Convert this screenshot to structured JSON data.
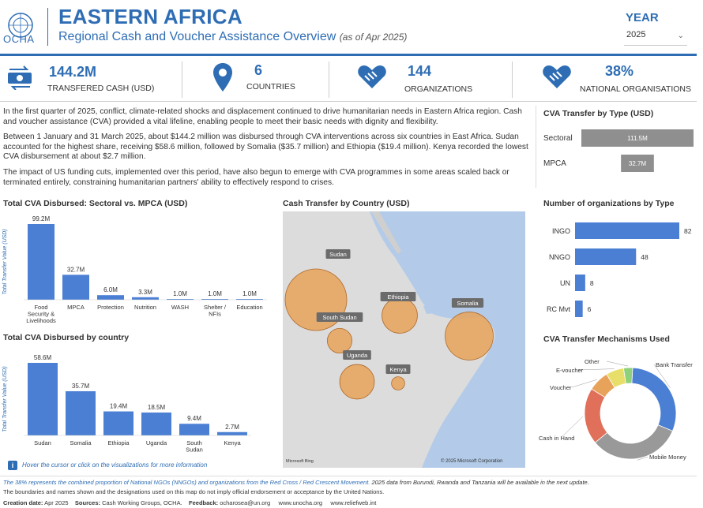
{
  "header": {
    "org": "OCHA",
    "title": "EASTERN AFRICA",
    "subtitle": "Regional Cash and Voucher Assistance Overview",
    "asof": "(as of Apr 2025)",
    "year_label": "YEAR",
    "year_value": "2025"
  },
  "kpis": [
    {
      "value": "144.2M",
      "label": "TRANSFERED CASH (USD)",
      "icon": "cash-transfer-icon"
    },
    {
      "value": "6",
      "label": "COUNTRIES",
      "icon": "map-pin-icon"
    },
    {
      "value": "144",
      "label": "ORGANIZATIONS",
      "icon": "handshake-icon"
    },
    {
      "value": "38%",
      "label": "NATIONAL ORGANISATIONS",
      "icon": "handshake-heart-icon"
    }
  ],
  "narrative": {
    "p1": "In the first quarter of 2025, conflict, climate-related shocks and displacement continued to drive humanitarian needs in Eastern Africa region. Cash and voucher assistance (CVA) provided a vital lifeline, enabling people to meet their basic needs with dignity and flexibility.",
    "p2": "Between 1 January and 31 March 2025, about $144.2 million was disbursed through CVA interventions across six countries in East Africa. Sudan accounted for the highest share, receiving $58.6 million, followed by Somalia ($35.7 million) and Ethiopia ($19.4 million). Kenya recorded the lowest CVA disbursement at about $2.7 million.",
    "p3": "The impact of US funding cuts, implemented over this period, have also begun to emerge with CVA programmes in some areas scaled back or terminated entirely, constraining humanitarian partners' ability to effectively respond to crises."
  },
  "hint": "Hover the cursor or click on the visualizations for more information",
  "map": {
    "title": "Cash Transfer by Country (USD)",
    "credit": "© 2025 Microsoft Corporation",
    "logo": "Microsoft Bing"
  },
  "chart_data": [
    {
      "type": "bar",
      "title": "CVA Transfer by Type (USD)",
      "orientation": "horizontal",
      "categories": [
        "Sectoral",
        "MPCA"
      ],
      "values": [
        111.5,
        32.7
      ],
      "labels": [
        "111.5M",
        "32.7M"
      ]
    },
    {
      "type": "bar",
      "title": "Total CVA Disbursed: Sectoral vs. MPCA (USD)",
      "ylabel": "Total Transfer Value (USD)",
      "categories": [
        "Food Security & Livelihoods",
        "MPCA",
        "Protection",
        "Nutrition",
        "WASH",
        "Shelter / NFIs",
        "Education"
      ],
      "values": [
        99.2,
        32.7,
        6.0,
        3.3,
        1.0,
        1.0,
        1.0
      ],
      "labels": [
        "99.2M",
        "32.7M",
        "6.0M",
        "3.3M",
        "1.0M",
        "1.0M",
        "1.0M"
      ]
    },
    {
      "type": "bar",
      "title": "Total CVA Disbursed by country",
      "ylabel": "Total Transfer Value (USD)",
      "categories": [
        "Sudan",
        "Somalia",
        "Ethiopia",
        "Uganda",
        "South Sudan",
        "Kenya"
      ],
      "values": [
        58.6,
        35.7,
        19.4,
        18.5,
        9.4,
        2.7
      ],
      "labels": [
        "58.6M",
        "35.7M",
        "19.4M",
        "18.5M",
        "9.4M",
        "2.7M"
      ]
    },
    {
      "type": "bar",
      "title": "Number of organizations by Type",
      "orientation": "horizontal",
      "categories": [
        "INGO",
        "NNGO",
        "UN",
        "RC Mvt"
      ],
      "values": [
        82,
        48,
        8,
        6
      ]
    },
    {
      "type": "scatter",
      "title": "Cash Transfer by Country (USD)",
      "kind": "bubble-map",
      "points": [
        {
          "name": "Sudan",
          "value": 58.6
        },
        {
          "name": "Somalia",
          "value": 35.7
        },
        {
          "name": "Ethiopia",
          "value": 19.4
        },
        {
          "name": "Uganda",
          "value": 18.5
        },
        {
          "name": "South Sudan",
          "value": 9.4
        },
        {
          "name": "Kenya",
          "value": 2.7
        }
      ]
    },
    {
      "type": "pie",
      "title": "CVA Transfer Mechanisms Used",
      "donut": true,
      "categories": [
        "Bank Transfer",
        "Mobile Money",
        "Cash in Hand",
        "Voucher",
        "E-voucher",
        "Other"
      ],
      "values": [
        29,
        31,
        19,
        7,
        6,
        3
      ],
      "colors": [
        "#4a7fd4",
        "#999999",
        "#e0705a",
        "#e8a35a",
        "#e8df6a",
        "#8fd07a"
      ]
    }
  ],
  "footer": {
    "note1": "The 38% represents the combined proportion of National NGOs (NNGOs) and organizations from the Red Cross / Red Crescent Movement.",
    "note2": "2025 data from Burundi, Rwanda and Tanzania will be available in the next update.",
    "note3": "The boundaries and names shown and the designations used on this map do not imply official endorsement or acceptance by the United Nations.",
    "creation_label": "Creation date:",
    "creation": "Apr 2025",
    "sources_label": "Sources:",
    "sources": "Cash Working Groups, OCHA.",
    "feedback_label": "Feedback:",
    "feedback": "ocharosea@un.org",
    "link1": "www.unocha.org",
    "link2": "www.reliefweb.int"
  }
}
